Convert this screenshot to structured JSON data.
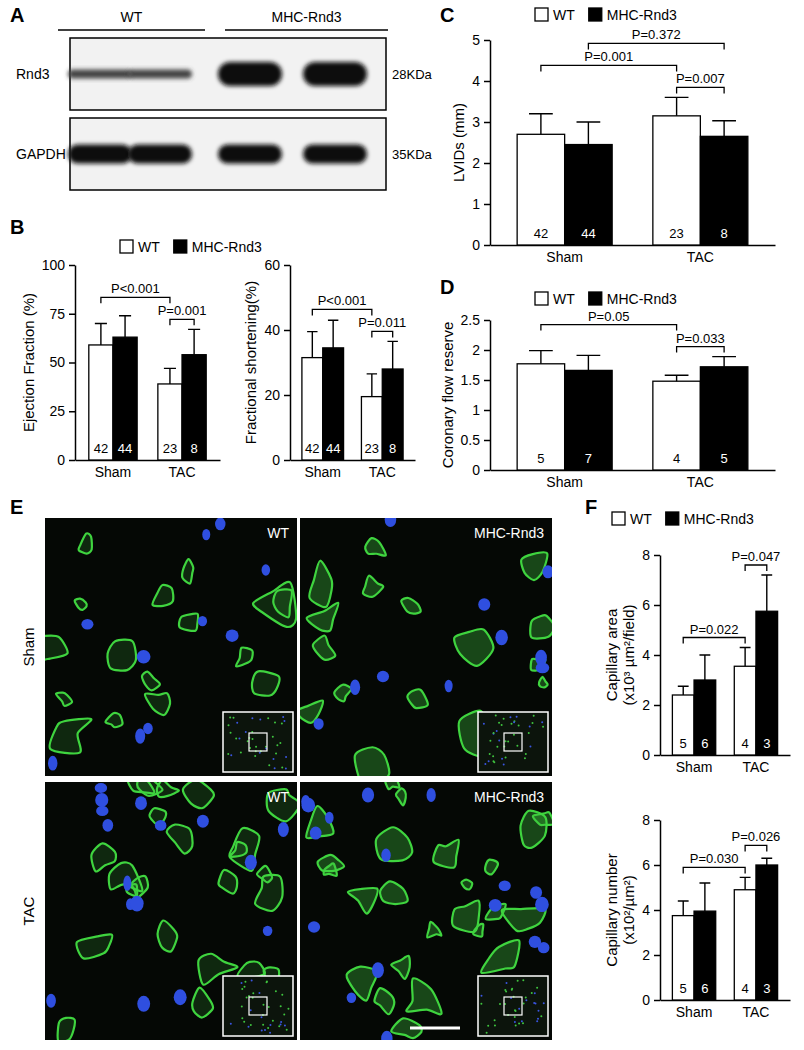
{
  "figure": {
    "panel_labels": [
      "A",
      "B",
      "C",
      "D",
      "E",
      "F"
    ],
    "blot": {
      "groups": [
        "WT",
        "MHC-Rnd3"
      ],
      "rows": [
        {
          "label": "Rnd3",
          "size": "28KDa"
        },
        {
          "label": "GAPDH",
          "size": "35KDa"
        }
      ]
    },
    "micrograph": {
      "columns": [
        "WT",
        "MHC-Rnd3"
      ],
      "rows": [
        "Sham",
        "TAC"
      ]
    }
  },
  "chart_data": [
    {
      "type": "bar",
      "ylabel": "Ejection Fraction (%)",
      "categories": [
        "Sham",
        "TAC"
      ],
      "series": [
        {
          "name": "WT",
          "color": "#ffffff",
          "values": [
            59,
            39
          ],
          "errors": [
            11,
            8
          ],
          "n": [
            42,
            23
          ]
        },
        {
          "name": "MHC-Rnd3",
          "color": "#000000",
          "values": [
            63,
            54
          ],
          "errors": [
            11,
            13
          ],
          "n": [
            44,
            8
          ]
        }
      ],
      "ylim": [
        0,
        100
      ],
      "yticks": [
        0,
        25,
        50,
        75,
        100
      ],
      "legend": "top",
      "annotations": [
        {
          "text": "P=0.001",
          "from": [
            0,
            1
          ],
          "to": [
            1,
            1
          ]
        },
        {
          "text": "P<0.001",
          "from": [
            0,
            0
          ],
          "to": [
            0,
            1
          ]
        }
      ]
    },
    {
      "type": "bar",
      "ylabel": "Fractional shortening(%)",
      "categories": [
        "Sham",
        "TAC"
      ],
      "series": [
        {
          "color": "#ffffff",
          "values": [
            31.5,
            19.5
          ],
          "errors": [
            8,
            7
          ],
          "n": [
            42,
            23
          ]
        },
        {
          "color": "#000000",
          "values": [
            34.5,
            28
          ],
          "errors": [
            8.5,
            8.5
          ],
          "n": [
            44,
            8
          ]
        }
      ],
      "ylim": [
        0,
        60
      ],
      "yticks": [
        0,
        20,
        40,
        60
      ],
      "annotations": [
        {
          "text": "P=0.011",
          "from": [
            0,
            1
          ],
          "to": [
            1,
            1
          ]
        },
        {
          "text": "P<0.001",
          "from": [
            0,
            0
          ],
          "to": [
            0,
            1
          ]
        }
      ]
    },
    {
      "type": "bar",
      "ylabel": "LVIDs (mm)",
      "categories": [
        "Sham",
        "TAC"
      ],
      "series": [
        {
          "name": "WT",
          "color": "#ffffff",
          "values": [
            2.7,
            3.15
          ],
          "errors": [
            0.5,
            0.45
          ],
          "n": [
            42,
            23
          ]
        },
        {
          "name": "MHC-Rnd3",
          "color": "#000000",
          "values": [
            2.45,
            2.65
          ],
          "errors": [
            0.55,
            0.38
          ],
          "n": [
            44,
            8
          ]
        }
      ],
      "ylim": [
        0,
        5
      ],
      "yticks": [
        0,
        1,
        2,
        3,
        4,
        5
      ],
      "legend": "top",
      "annotations": [
        {
          "text": "P=0.007",
          "from": [
            0,
            1
          ],
          "to": [
            1,
            1
          ]
        },
        {
          "text": "P=0.001",
          "from": [
            0,
            0
          ],
          "to": [
            0,
            1
          ]
        },
        {
          "text": "P=0.372",
          "from": [
            1,
            0
          ],
          "to": [
            1,
            1
          ]
        }
      ]
    },
    {
      "type": "bar",
      "ylabel": "Coronary flow reserve",
      "categories": [
        "Sham",
        "TAC"
      ],
      "series": [
        {
          "name": "WT",
          "color": "#ffffff",
          "values": [
            1.77,
            1.48
          ],
          "errors": [
            0.22,
            0.1
          ],
          "n": [
            5,
            4
          ]
        },
        {
          "name": "MHC-Rnd3",
          "color": "#000000",
          "values": [
            1.66,
            1.72
          ],
          "errors": [
            0.25,
            0.17
          ],
          "n": [
            7,
            5
          ]
        }
      ],
      "ylim": [
        0,
        2.5
      ],
      "yticks": [
        0,
        0.5,
        1,
        1.5,
        2,
        2.5
      ],
      "legend": "top",
      "annotations": [
        {
          "text": "P=0.033",
          "from": [
            0,
            1
          ],
          "to": [
            1,
            1
          ]
        },
        {
          "text": "P=0.05",
          "from": [
            0,
            0
          ],
          "to": [
            0,
            1
          ]
        }
      ]
    },
    {
      "type": "bar",
      "ylabel": [
        "Capillary area",
        "(x10³ µm²/field)"
      ],
      "categories": [
        "Sham",
        "TAC"
      ],
      "series": [
        {
          "name": "WT",
          "color": "#ffffff",
          "values": [
            2.4,
            3.55
          ],
          "errors": [
            0.35,
            0.75
          ],
          "n": [
            5,
            4
          ]
        },
        {
          "name": "MHC-Rnd3",
          "color": "#000000",
          "values": [
            3.0,
            5.75
          ],
          "errors": [
            1.0,
            1.45
          ],
          "n": [
            6,
            3
          ]
        }
      ],
      "ylim": [
        0,
        8
      ],
      "yticks": [
        0,
        2,
        4,
        6,
        8
      ],
      "legend": "top",
      "annotations": [
        {
          "text": "P=0.022",
          "from": [
            0,
            0
          ],
          "to": [
            0,
            1
          ]
        },
        {
          "text": "P=0.047",
          "from": [
            0,
            1
          ],
          "to": [
            1,
            1
          ]
        }
      ]
    },
    {
      "type": "bar",
      "ylabel": [
        "Capillary number",
        "(x10²/µm²)"
      ],
      "categories": [
        "Sham",
        "TAC"
      ],
      "series": [
        {
          "color": "#ffffff",
          "values": [
            3.75,
            4.9
          ],
          "errors": [
            0.65,
            0.55
          ],
          "n": [
            5,
            4
          ]
        },
        {
          "color": "#000000",
          "values": [
            3.95,
            6.0
          ],
          "errors": [
            1.25,
            0.3
          ],
          "n": [
            6,
            3
          ]
        }
      ],
      "ylim": [
        0,
        8
      ],
      "yticks": [
        0,
        2,
        4,
        6,
        8
      ],
      "annotations": [
        {
          "text": "P=0.030",
          "from": [
            0,
            0
          ],
          "to": [
            0,
            1
          ]
        },
        {
          "text": "P=0.026",
          "from": [
            0,
            1
          ],
          "to": [
            1,
            1
          ]
        }
      ]
    }
  ]
}
